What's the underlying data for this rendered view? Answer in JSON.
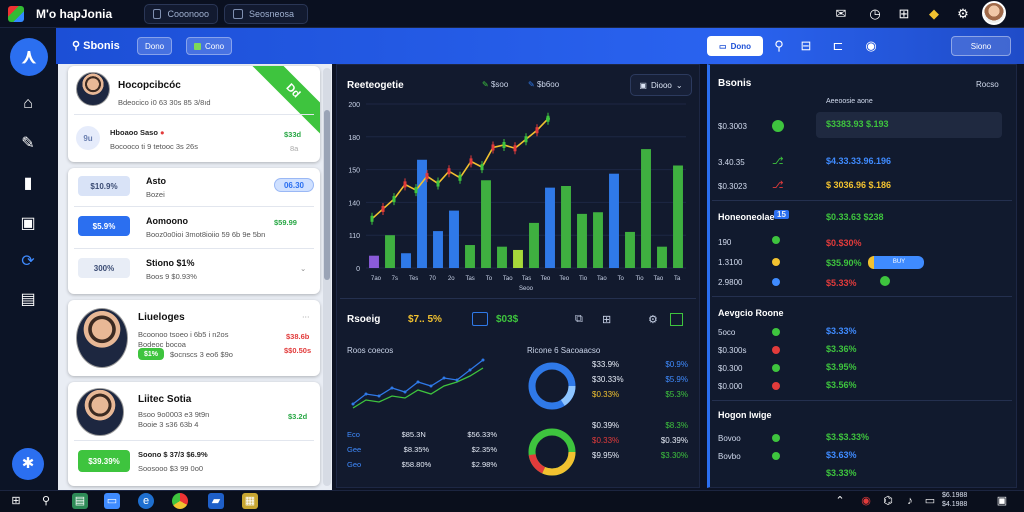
{
  "topbar": {
    "title": "M'o hapJonia",
    "tabs": [
      {
        "label": "Cooonooo"
      },
      {
        "label": "Seosneosa"
      }
    ]
  },
  "bluebar": {
    "title": "Sbonis",
    "pills": [
      {
        "label": "Dono"
      },
      {
        "label": "Cono"
      }
    ],
    "primary_button": "Dono",
    "right_button": "Siono"
  },
  "left_cards": [
    {
      "name": "Hocopcibcóc",
      "sub": "Bdeocico i0 63 30s 85 3/8ıd",
      "ribbon": "Dd",
      "row": {
        "pill": "9u",
        "label": "Hboaoo Saso",
        "sub": "Bocooco ti 9 tetooc 3s 26s",
        "value": "$33d",
        "value_b": "8a"
      }
    },
    {
      "rows": [
        {
          "pill": "$10.9%",
          "label": "Asto",
          "sub": "Bozei",
          "badge": "06.30"
        },
        {
          "pill": "$5.9%",
          "label": "Aomoono",
          "sub": "Booz0o0ioi 3mot8ioiio 59 6b 9e 5bn",
          "value": "$59.99"
        },
        {
          "pill": "300%",
          "label": "Stiono $1%",
          "sub": "Boos 9 $0.93%"
        }
      ]
    },
    {
      "name": "Liueloges",
      "sub": "Bcoonoo tsoeo i 6b5 i n2os",
      "sub2": "Bodeoc bocoa",
      "pill": "$1%",
      "sub3": "$ocnscs 3 eo6 $9o",
      "value": "$38.6b",
      "value2": "$$0.50s"
    },
    {
      "name": "Liitec Sotia",
      "sub": "Bsoo 9o0003 e3 9t9n",
      "sub2": "Booie 3 s36 63b 4",
      "value": "$3.2d",
      "pill": "$39.39%",
      "label2": "Soono $ 37/3 $6.9%",
      "sub3": "Soosooo $3 99 0o0"
    }
  ],
  "mid": {
    "chart_title": "Reeteogetie",
    "legend": [
      {
        "name": "$soo"
      },
      {
        "name": "$b6oo"
      }
    ],
    "dropdown": "Diooo",
    "y_ticks": [
      "200",
      "180",
      "150",
      "140",
      "110",
      "0"
    ],
    "x_ticks": [
      "7ao",
      "7s",
      "Tes",
      "70",
      "2o",
      "Tas",
      "To",
      "Tao",
      "Tas",
      "Teo",
      "Teo",
      "Tio",
      "Tao",
      "To",
      "Tio",
      "Tao",
      "Ta"
    ],
    "x_label": "Seoo",
    "stats_title": "Rsoeig",
    "stat1": "$7.. 5%",
    "stat2": "$03$",
    "line_chart_title": "Roos coecos",
    "line_rows": [
      {
        "a": "Eco",
        "b": "$85.3N",
        "c": "$56.33%"
      },
      {
        "a": "Gee",
        "b": "$8.35%",
        "c": "$2.35%"
      },
      {
        "a": "Geo",
        "b": "$58.80%",
        "c": "$2.98%"
      }
    ],
    "donut_title": "Ricone 6 Sacoaacso",
    "donut_rows": [
      {
        "a": "$33.9%",
        "b": "$0.9%"
      },
      {
        "a": "$30.33%",
        "b": "$5.9%"
      },
      {
        "a": "$0.33%",
        "b": "$5.3%"
      },
      {
        "a": "$0.39%",
        "b": "$8.3%"
      },
      {
        "a": "$0.33%",
        "b": "$0.39%"
      },
      {
        "a": "$9.95%",
        "b": "$3.30%"
      }
    ]
  },
  "chart_data": {
    "type": "bar",
    "title": "Reeteogetie",
    "ylim": [
      0,
      200
    ],
    "values": [
      15,
      40,
      18,
      132,
      45,
      70,
      28,
      107,
      26,
      22,
      55,
      98,
      100,
      66,
      68,
      115,
      44,
      145,
      26,
      125
    ],
    "colors": [
      "#8a5bd9",
      "#3fb040",
      "#2f79e8",
      "#2f79e8",
      "#2f79e8",
      "#2f79e8",
      "#3fb040",
      "#3fb040",
      "#3fb040",
      "#a7d83a",
      "#3fb040",
      "#2f79e8",
      "#3fb040",
      "#3fb040",
      "#3fb040",
      "#2f79e8",
      "#3fb040",
      "#3fb040",
      "#3fb040",
      "#3fb040"
    ],
    "line": [
      60,
      72,
      84,
      102,
      95,
      112,
      103,
      118,
      110,
      130,
      123,
      147,
      150,
      146,
      157,
      168,
      182
    ]
  },
  "right": {
    "title": "Bsonis",
    "title_right": "Rocso",
    "col_head": "Aeeoosie aone",
    "rows1": [
      {
        "label": "$0.3003",
        "value": "$3383.93 $.193"
      },
      {
        "label": "3.40.35",
        "value": "$4.33.33.96.196"
      },
      {
        "label": "$0.3023",
        "value": "$ 3036.96 $.186"
      }
    ],
    "section2": "Honeoneolae",
    "badge2": "15",
    "s2_value": "$0.33.63 $238",
    "rows2": [
      {
        "label": "190",
        "value": "$0.$30%"
      },
      {
        "label": "1.3100",
        "value": "$35.90%",
        "tag": "BUY"
      },
      {
        "label": "2.9800",
        "value": "$5.33%"
      }
    ],
    "section3": "Aevgcio Roone",
    "rows3": [
      {
        "label": "5oco",
        "value": "$3.33%"
      },
      {
        "label": "$0.300s",
        "value": "$3.36%"
      },
      {
        "label": "$0.300",
        "value": "$3.95%"
      },
      {
        "label": "$0.000",
        "value": "$3.56%"
      }
    ],
    "section4": "Hogon lwige",
    "rows4": [
      {
        "label": "Bovoo",
        "value": "$3.$3.33%"
      },
      {
        "label": "Bovbo",
        "value": "$3.63%"
      },
      {
        "label": "",
        "value": "$3.33%"
      }
    ]
  },
  "taskbar": {
    "time": "$6.1988",
    "date": "$4.1988"
  }
}
